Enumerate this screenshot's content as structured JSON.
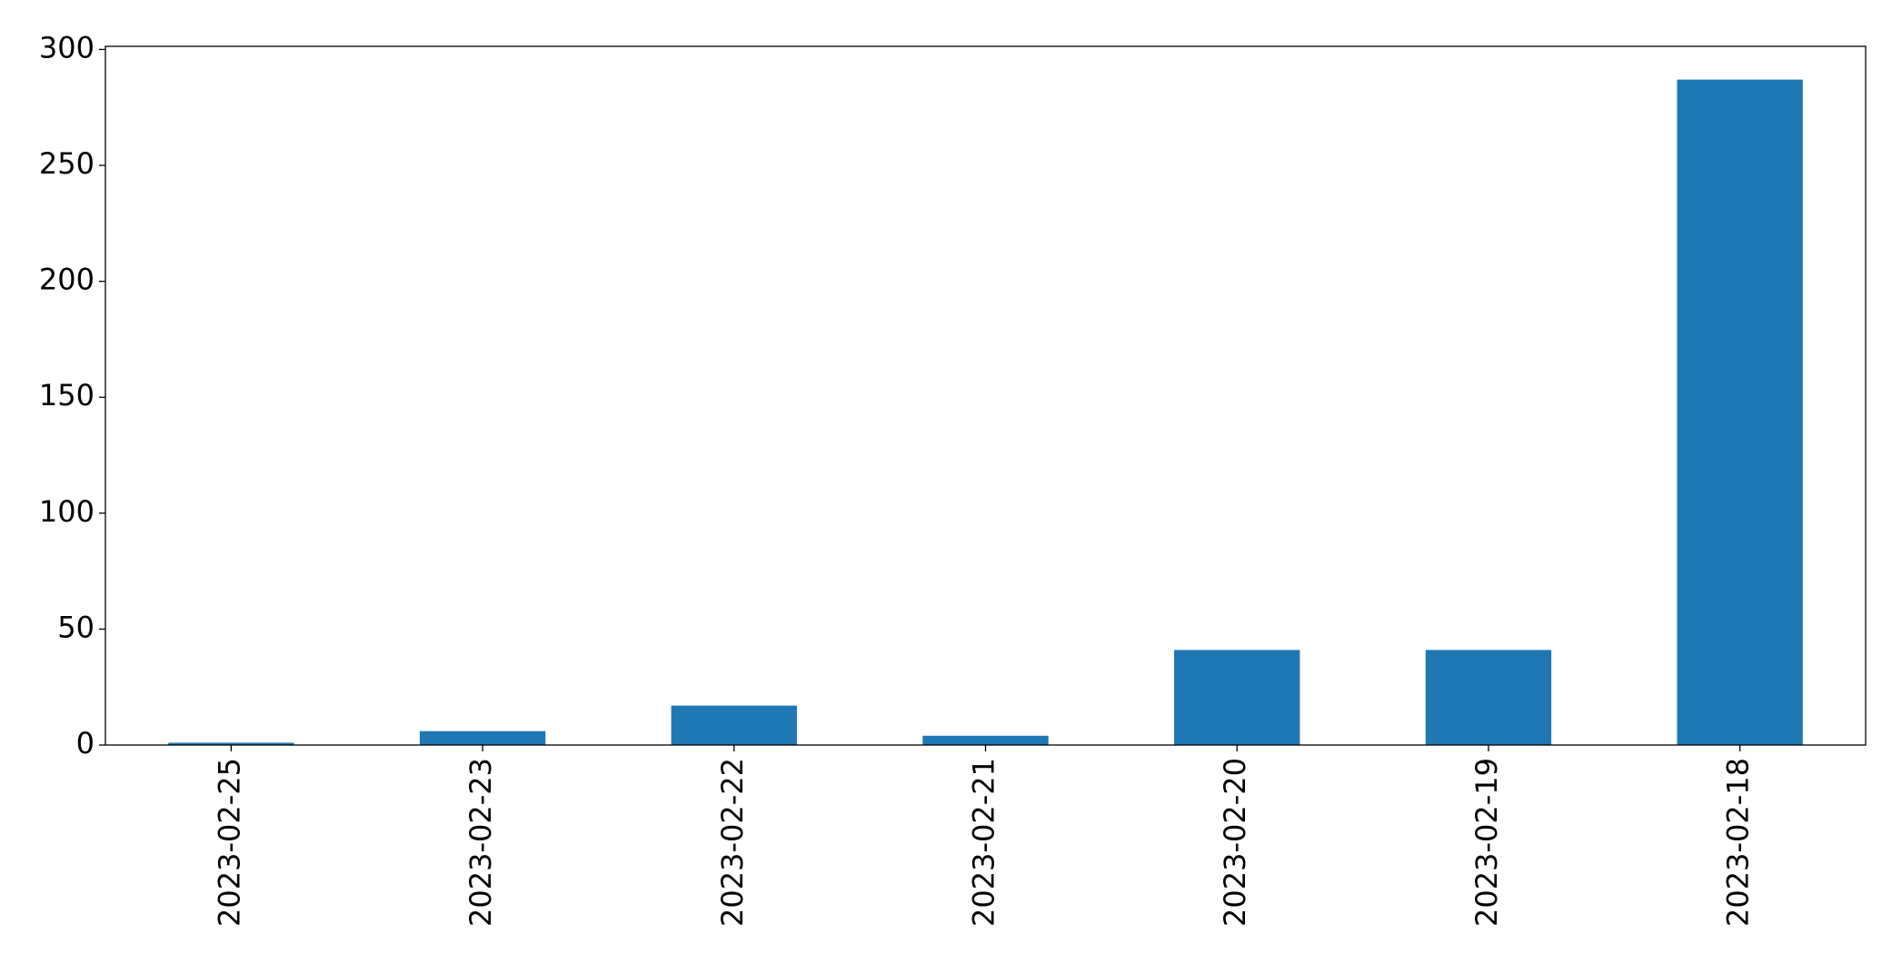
{
  "chart_data": {
    "type": "bar",
    "categories": [
      "2023-02-25",
      "2023-02-23",
      "2023-02-22",
      "2023-02-21",
      "2023-02-20",
      "2023-02-19",
      "2023-02-18"
    ],
    "values": [
      1,
      6,
      17,
      4,
      41,
      41,
      287
    ],
    "color": "#1f77b4",
    "ylim": [
      0,
      301.35
    ],
    "yticks": [
      0,
      50,
      100,
      150,
      200,
      250,
      300
    ],
    "grid": false
  }
}
